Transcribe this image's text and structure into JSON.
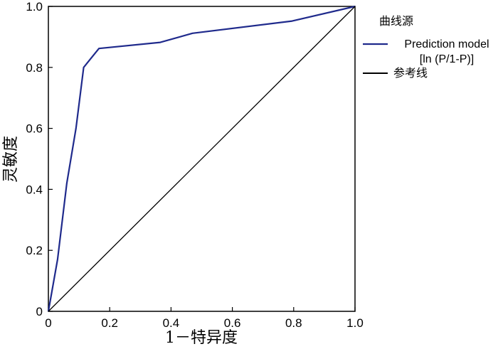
{
  "chart_data": {
    "type": "line",
    "title": "",
    "xlabel": "1－特异度",
    "ylabel": "灵敏度",
    "xlim": [
      0,
      1
    ],
    "ylim": [
      0,
      1
    ],
    "xticks": [
      "0",
      "0.2",
      "0.4",
      "0.6",
      "0.8",
      "1.0"
    ],
    "yticks": [
      "0",
      "0.2",
      "0.4",
      "0.6",
      "0.8",
      "1.0"
    ],
    "grid": false,
    "legend": {
      "title": "曲线源",
      "placement": "right"
    },
    "series": [
      {
        "name": "Prediction model [ln (P/1-P)]",
        "label_lines": [
          "Prediction model",
          "[ln (P/1-P)]"
        ],
        "color": "#1f2a8c",
        "x": [
          0,
          0.03,
          0.06,
          0.09,
          0.115,
          0.165,
          0.365,
          0.47,
          0.795,
          1.0
        ],
        "y": [
          0,
          0.17,
          0.42,
          0.6,
          0.8,
          0.862,
          0.882,
          0.912,
          0.952,
          1.0
        ]
      },
      {
        "name": "参考线",
        "label_lines": [
          "参考线"
        ],
        "color": "#000000",
        "x": [
          0,
          1
        ],
        "y": [
          0,
          1
        ]
      }
    ]
  }
}
